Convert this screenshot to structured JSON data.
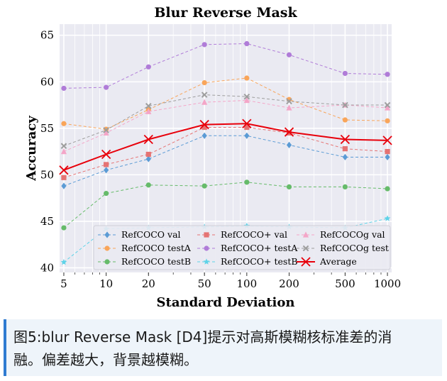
{
  "chart_data": {
    "type": "line",
    "title": "Blur Reverse Mask",
    "xlabel": "Standard Deviation",
    "ylabel": "Accuracy",
    "x_scale": "log",
    "x": [
      5,
      10,
      20,
      50,
      100,
      200,
      500,
      1000
    ],
    "x_tick_labels": [
      "5",
      "10",
      "20",
      "50",
      "100",
      "200",
      "500",
      "1000"
    ],
    "ylim": [
      39.5,
      66.2
    ],
    "y_ticks": [
      40,
      45,
      50,
      55,
      60,
      65
    ],
    "grid": true,
    "legend_position": "lower-center",
    "series": [
      {
        "name": "RefCOCO val",
        "color": "#5b9bd5",
        "marker": "diamond",
        "dashed": true,
        "values": [
          48.8,
          50.5,
          51.7,
          54.2,
          54.2,
          53.2,
          51.9,
          51.9
        ]
      },
      {
        "name": "RefCOCO testA",
        "color": "#f9a55a",
        "marker": "circle",
        "dashed": true,
        "values": [
          55.5,
          54.9,
          57.0,
          59.9,
          60.4,
          58.1,
          55.9,
          55.8
        ]
      },
      {
        "name": "RefCOCO testB",
        "color": "#66bb6a",
        "marker": "circle",
        "dashed": true,
        "values": [
          44.3,
          48.0,
          48.9,
          48.8,
          49.2,
          48.7,
          48.7,
          48.5
        ]
      },
      {
        "name": "RefCOCO+ val",
        "color": "#e57373",
        "marker": "square",
        "dashed": true,
        "values": [
          49.7,
          51.1,
          52.2,
          55.1,
          55.1,
          54.5,
          52.8,
          52.5
        ]
      },
      {
        "name": "RefCOCO+ testA",
        "color": "#b07cd8",
        "marker": "circle",
        "dashed": true,
        "values": [
          59.3,
          59.4,
          61.6,
          64.0,
          64.1,
          62.9,
          60.9,
          60.8
        ]
      },
      {
        "name": "RefCOCO+ testB",
        "color": "#5fd3e8",
        "marker": "star",
        "dashed": true,
        "values": [
          40.6,
          44.2,
          44.3,
          44.4,
          44.5,
          44.4,
          44.3,
          45.3
        ]
      },
      {
        "name": "RefCOCOg val",
        "color": "#f4a6c8",
        "marker": "triangle",
        "dashed": true,
        "values": [
          52.5,
          54.5,
          56.8,
          57.8,
          58.0,
          57.2,
          57.5,
          57.2
        ]
      },
      {
        "name": "RefCOCOg test",
        "color": "#9e9e9e",
        "marker": "x",
        "dashed": true,
        "values": [
          53.1,
          54.8,
          57.4,
          58.6,
          58.4,
          57.9,
          57.5,
          57.5
        ]
      },
      {
        "name": "Average",
        "color": "#e8000b",
        "marker": "x",
        "dashed": false,
        "values": [
          50.5,
          52.2,
          53.8,
          55.4,
          55.5,
          54.6,
          53.8,
          53.7
        ]
      }
    ]
  },
  "caption": {
    "line1": "图5:blur Reverse Mask [D4]提示对高斯模糊核标准差的消",
    "line2": "融。偏差越大，背景越模糊。"
  }
}
